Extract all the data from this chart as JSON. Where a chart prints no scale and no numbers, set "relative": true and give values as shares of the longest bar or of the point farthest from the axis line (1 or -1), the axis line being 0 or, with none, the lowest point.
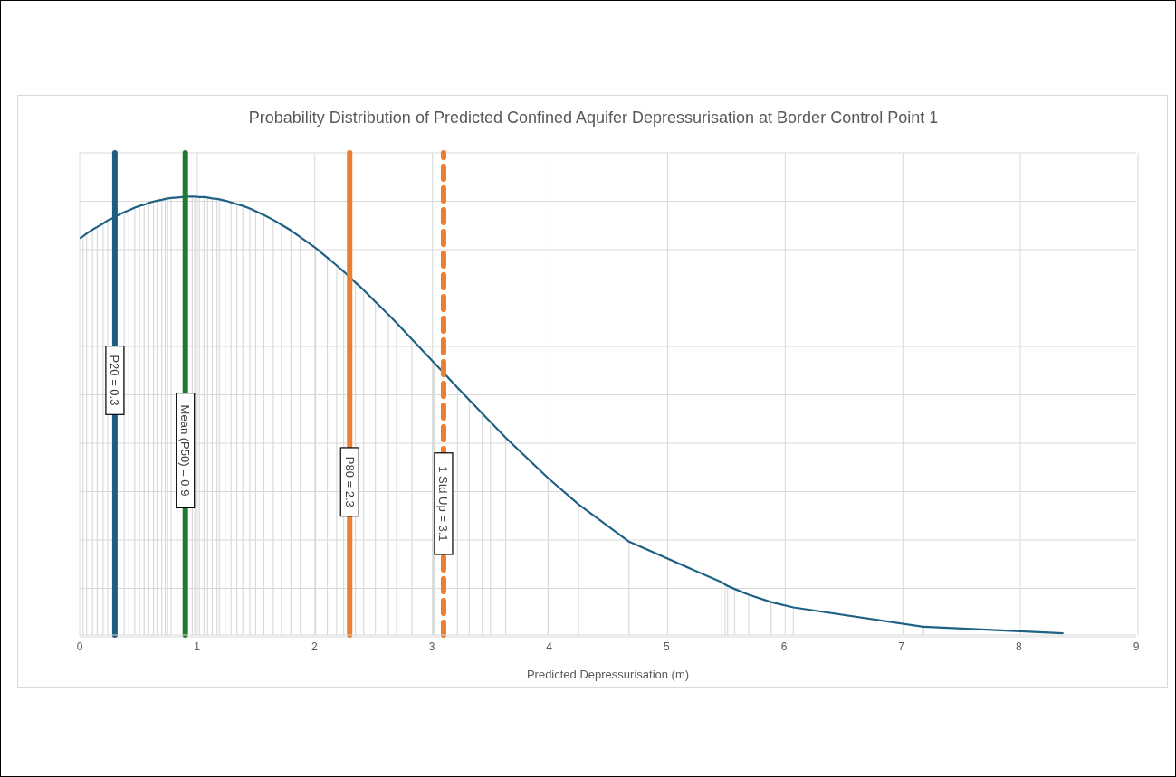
{
  "chart_data": {
    "type": "line",
    "title": "Probability Distribution of Predicted Confined Aquifer Depressurisation at Border Control Point 1",
    "xlabel": "Predicted Depressurisation (m)",
    "relative": true,
    "xlim": [
      0,
      9
    ],
    "xticks": [
      0,
      1,
      2,
      3,
      4,
      5,
      6,
      7,
      8,
      9
    ],
    "grid": true,
    "series": [
      {
        "type": "bar",
        "color": "#d9d9d9",
        "x": [
          0.03,
          0.06,
          0.11,
          0.15,
          0.2,
          0.24,
          0.28,
          0.38,
          0.42,
          0.47,
          0.51,
          0.55,
          0.59,
          0.63,
          0.66,
          0.7,
          0.73,
          0.75,
          0.78,
          0.83,
          0.92,
          0.96,
          0.98,
          1.02,
          1.06,
          1.09,
          1.13,
          1.17,
          1.19,
          1.24,
          1.29,
          1.34,
          1.39,
          1.45,
          1.5,
          1.57,
          1.65,
          1.72,
          1.8,
          1.88,
          2.01,
          2.11,
          2.19,
          2.25,
          2.35,
          2.42,
          2.52,
          2.63,
          2.7,
          2.83,
          3.01,
          3.02,
          3.22,
          3.32,
          3.43,
          3.5,
          3.63,
          3.99,
          4.25,
          4.68,
          5.47,
          5.5,
          5.52,
          5.58,
          5.7,
          5.89,
          6.08,
          7.18,
          7.19
        ],
        "values": [
          0.91,
          0.916,
          0.925,
          0.931,
          0.939,
          0.946,
          null,
          0.965,
          0.969,
          0.975,
          0.979,
          0.982,
          0.986,
          0.989,
          0.991,
          0.993,
          0.995,
          0.996,
          0.997,
          0.998,
          null,
          1.0,
          1.0,
          0.999,
          0.999,
          0.998,
          0.996,
          0.995,
          0.994,
          0.991,
          0.987,
          0.983,
          0.979,
          0.973,
          0.967,
          0.958,
          0.947,
          0.936,
          0.923,
          0.908,
          0.883,
          0.861,
          0.843,
          0.829,
          0.804,
          0.787,
          0.76,
          0.731,
          0.712,
          0.675,
          0.624,
          0.621,
          0.564,
          0.536,
          0.505,
          0.486,
          0.45,
          0.358,
          0.298,
          0.213,
          0.12,
          0.115,
          0.112,
          0.105,
          0.092,
          0.075,
          0.063,
          0.019,
          0.019
        ]
      },
      {
        "color": "#1f6185",
        "x": [
          0,
          0.03,
          0.06,
          0.11,
          0.15,
          0.2,
          0.24,
          0.28,
          0.32,
          0.38,
          0.42,
          0.47,
          0.51,
          0.55,
          0.59,
          0.63,
          0.66,
          0.7,
          0.73,
          0.75,
          0.78,
          0.83,
          0.92,
          0.96,
          0.98,
          1.02,
          1.06,
          1.09,
          1.13,
          1.17,
          1.19,
          1.24,
          1.29,
          1.34,
          1.39,
          1.45,
          1.5,
          1.57,
          1.65,
          1.72,
          1.8,
          1.88,
          2.01,
          2.11,
          2.19,
          2.25,
          2.35,
          2.42,
          2.52,
          2.63,
          2.7,
          2.83,
          3.01,
          3.02,
          3.22,
          3.32,
          3.43,
          3.5,
          3.63,
          3.99,
          4.25,
          4.68,
          5.47,
          5.5,
          5.52,
          5.58,
          5.7,
          5.89,
          6.08,
          7.18,
          7.19,
          8.38
        ],
        "values": [
          0.905,
          0.91,
          0.916,
          0.925,
          0.931,
          0.939,
          0.946,
          0.951,
          0.957,
          0.965,
          0.969,
          0.975,
          0.979,
          0.982,
          0.986,
          0.989,
          0.991,
          0.993,
          0.995,
          0.996,
          0.997,
          0.998,
          1.0,
          1.0,
          1.0,
          0.999,
          0.999,
          0.998,
          0.996,
          0.995,
          0.994,
          0.991,
          0.987,
          0.983,
          0.979,
          0.973,
          0.967,
          0.958,
          0.947,
          0.936,
          0.923,
          0.908,
          0.883,
          0.861,
          0.843,
          0.829,
          0.804,
          0.787,
          0.76,
          0.731,
          0.712,
          0.675,
          0.624,
          0.621,
          0.564,
          0.536,
          0.505,
          0.486,
          0.45,
          0.358,
          0.298,
          0.213,
          0.12,
          0.115,
          0.112,
          0.105,
          0.092,
          0.075,
          0.063,
          0.019,
          0.019,
          0.004
        ]
      }
    ],
    "ref_lines": [
      {
        "axis": "x",
        "value": 0.3,
        "label": "P20 = 0.3",
        "color": "#1f5c82",
        "line_style": "solid"
      },
      {
        "axis": "x",
        "value": 0.9,
        "label": "Mean (P50) = 0.9",
        "color": "#217a2c",
        "line_style": "solid"
      },
      {
        "axis": "x",
        "value": 2.3,
        "label": "P80 = 2.3",
        "color": "#ed7d31",
        "line_style": "solid"
      },
      {
        "axis": "x",
        "value": 3.1,
        "label": "1 Std Up = 3.1",
        "color": "#ed7d31",
        "line_style": "dashed"
      }
    ]
  }
}
